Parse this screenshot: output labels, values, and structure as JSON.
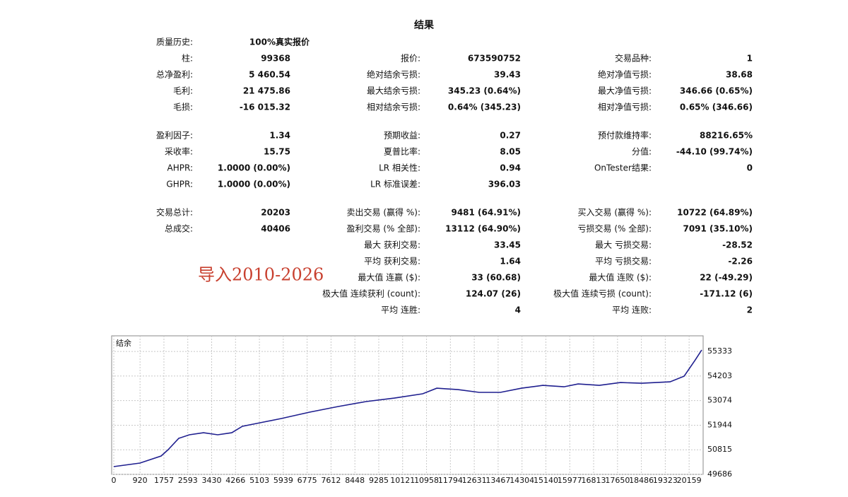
{
  "header": {
    "title": "结果"
  },
  "stats": {
    "groups": [
      {
        "rows": [
          {
            "c1": {
              "label": "质量历史:",
              "value": "100%真实报价"
            }
          },
          {
            "c1": {
              "label": "柱:",
              "value": "99368"
            },
            "c2": {
              "label": "报价:",
              "value": "673590752"
            },
            "c3": {
              "label": "交易品种:",
              "value": "1"
            }
          },
          {
            "c1": {
              "label": "总净盈利:",
              "value": "5 460.54"
            },
            "c2": {
              "label": "绝对结余亏损:",
              "value": "39.43"
            },
            "c3": {
              "label": "绝对净值亏损:",
              "value": "38.68"
            }
          },
          {
            "c1": {
              "label": "毛利:",
              "value": "21 475.86"
            },
            "c2": {
              "label": "最大结余亏损:",
              "value": "345.23 (0.64%)"
            },
            "c3": {
              "label": "最大净值亏损:",
              "value": "346.66 (0.65%)"
            }
          },
          {
            "c1": {
              "label": "毛损:",
              "value": "-16 015.32"
            },
            "c2": {
              "label": "相对结余亏损:",
              "value": "0.64% (345.23)"
            },
            "c3": {
              "label": "相对净值亏损:",
              "value": "0.65% (346.66)"
            }
          }
        ]
      },
      {
        "rows": [
          {
            "c1": {
              "label": "盈利因子:",
              "value": "1.34"
            },
            "c2": {
              "label": "预期收益:",
              "value": "0.27"
            },
            "c3": {
              "label": "预付款维持率:",
              "value": "88216.65%"
            }
          },
          {
            "c1": {
              "label": "采收率:",
              "value": "15.75"
            },
            "c2": {
              "label": "夏普比率:",
              "value": "8.05"
            },
            "c3": {
              "label": "分值:",
              "value": "-44.10 (99.74%)"
            }
          },
          {
            "c1": {
              "label": "AHPR:",
              "value": "1.0000 (0.00%)"
            },
            "c2": {
              "label": "LR 相关性:",
              "value": "0.94"
            },
            "c3": {
              "label": "OnTester结果:",
              "value": "0"
            }
          },
          {
            "c1": {
              "label": "GHPR:",
              "value": "1.0000 (0.00%)"
            },
            "c2": {
              "label": "LR 标准误差:",
              "value": "396.03"
            }
          }
        ]
      },
      {
        "rows": [
          {
            "c1": {
              "label": "交易总计:",
              "value": "20203"
            },
            "c2": {
              "label": "卖出交易 (赢得 %):",
              "value": "9481 (64.91%)"
            },
            "c3": {
              "label": "买入交易 (赢得 %):",
              "value": "10722 (64.89%)"
            }
          },
          {
            "c1": {
              "label": "总成交:",
              "value": "40406"
            },
            "c2": {
              "label": "盈利交易 (% 全部):",
              "value": "13112 (64.90%)"
            },
            "c3": {
              "label": "亏损交易 (% 全部):",
              "value": "7091 (35.10%)"
            }
          },
          {
            "c2": {
              "label": "最大 获利交易:",
              "value": "33.45"
            },
            "c3": {
              "label": "最大 亏损交易:",
              "value": "-28.52"
            }
          },
          {
            "c2": {
              "label": "平均 获利交易:",
              "value": "1.64"
            },
            "c3": {
              "label": "平均 亏损交易:",
              "value": "-2.26"
            }
          },
          {
            "c2": {
              "label": "最大值 连赢 ($):",
              "value": "33 (60.68)"
            },
            "c3": {
              "label": "最大值 连败 ($):",
              "value": "22 (-49.29)"
            }
          },
          {
            "c2": {
              "label": "极大值 连续获利 (count):",
              "value": "124.07 (26)"
            },
            "c3": {
              "label": "极大值 连续亏损 (count):",
              "value": "-171.12 (6)"
            }
          },
          {
            "c2": {
              "label": "平均 连胜:",
              "value": "4"
            },
            "c3": {
              "label": "平均 连败:",
              "value": "2"
            }
          }
        ]
      }
    ]
  },
  "annotation": "导入2010-2026",
  "chart_data": {
    "type": "line",
    "title": "结余",
    "color": "#1f1f8f",
    "grid": true,
    "x": [
      0,
      916,
      1659,
      1907,
      2279,
      2650,
      3145,
      3641,
      4136,
      4507,
      5126,
      5869,
      6860,
      7850,
      8841,
      9832,
      10822,
      11318,
      12060,
      12803,
      13546,
      14289,
      15032,
      15775,
      16270,
      17013,
      17756,
      18499,
      19490,
      19985,
      20357,
      20600
    ],
    "values": [
      50043,
      50205,
      50530,
      50822,
      51341,
      51503,
      51600,
      51503,
      51600,
      51893,
      52055,
      52250,
      52542,
      52801,
      53029,
      53191,
      53386,
      53645,
      53580,
      53451,
      53451,
      53645,
      53775,
      53710,
      53840,
      53775,
      53905,
      53872,
      53937,
      54197,
      54911,
      55398
    ],
    "xlim": [
      0,
      20650
    ],
    "ylim": [
      49686,
      56050
    ],
    "xticks": [
      0,
      920,
      1757,
      2593,
      3430,
      4266,
      5103,
      5939,
      6775,
      7612,
      8448,
      9285,
      10121,
      10958,
      11794,
      12631,
      13467,
      14304,
      15140,
      15977,
      16813,
      17650,
      18486,
      19323,
      20159
    ],
    "yticks": [
      49686,
      50815,
      51944,
      53074,
      54203,
      55333
    ]
  }
}
